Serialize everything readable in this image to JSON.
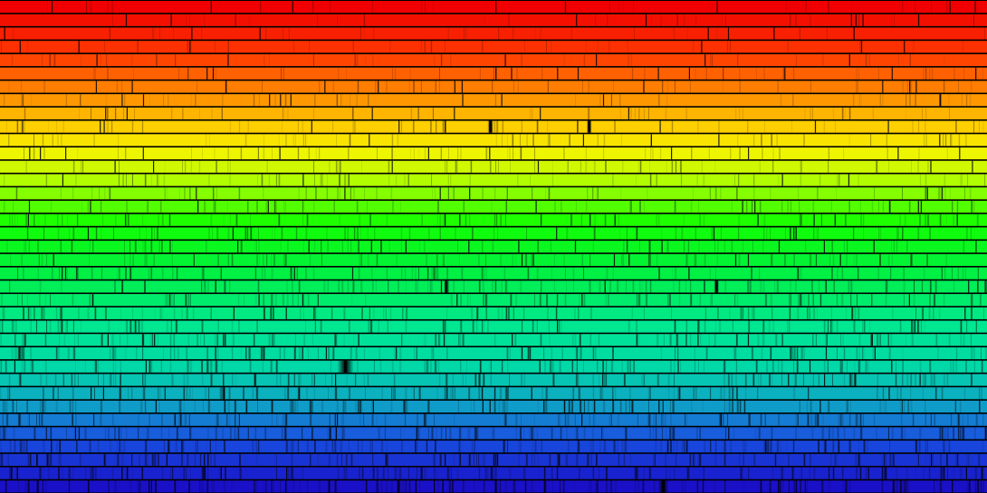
{
  "image": {
    "subject": "solar-spectrum-echelle",
    "strip_count": 37,
    "background_color": "#000000",
    "separator_color": "#000000",
    "line_color": "#000000",
    "band_colors": [
      {
        "at": 0.0,
        "color": "#f00000"
      },
      {
        "at": 0.1,
        "color": "#ff3a00"
      },
      {
        "at": 0.18,
        "color": "#ff8a00"
      },
      {
        "at": 0.25,
        "color": "#ffcf00"
      },
      {
        "at": 0.3,
        "color": "#f4f400"
      },
      {
        "at": 0.37,
        "color": "#a8ff00"
      },
      {
        "at": 0.45,
        "color": "#14ff00"
      },
      {
        "at": 0.55,
        "color": "#00f040"
      },
      {
        "at": 0.66,
        "color": "#00e890"
      },
      {
        "at": 0.75,
        "color": "#00d8a8"
      },
      {
        "at": 0.83,
        "color": "#10a0c8"
      },
      {
        "at": 0.9,
        "color": "#1850e0"
      },
      {
        "at": 1.0,
        "color": "#1a10c8"
      }
    ],
    "notable_features": [
      {
        "strip": 9,
        "at": 0.497,
        "strength": 0.95,
        "spread": 2.2
      },
      {
        "strip": 9,
        "at": 0.597,
        "strength": 0.9,
        "spread": 2.0
      },
      {
        "strip": 21,
        "at": 0.452,
        "strength": 0.8,
        "spread": 1.5
      },
      {
        "strip": 21,
        "at": 0.726,
        "strength": 0.85,
        "spread": 2.0
      },
      {
        "strip": 27,
        "at": 0.35,
        "strength": 1.0,
        "spread": 6.0
      },
      {
        "strip": 36,
        "at": 0.672,
        "strength": 0.9,
        "spread": 4.0
      }
    ]
  }
}
